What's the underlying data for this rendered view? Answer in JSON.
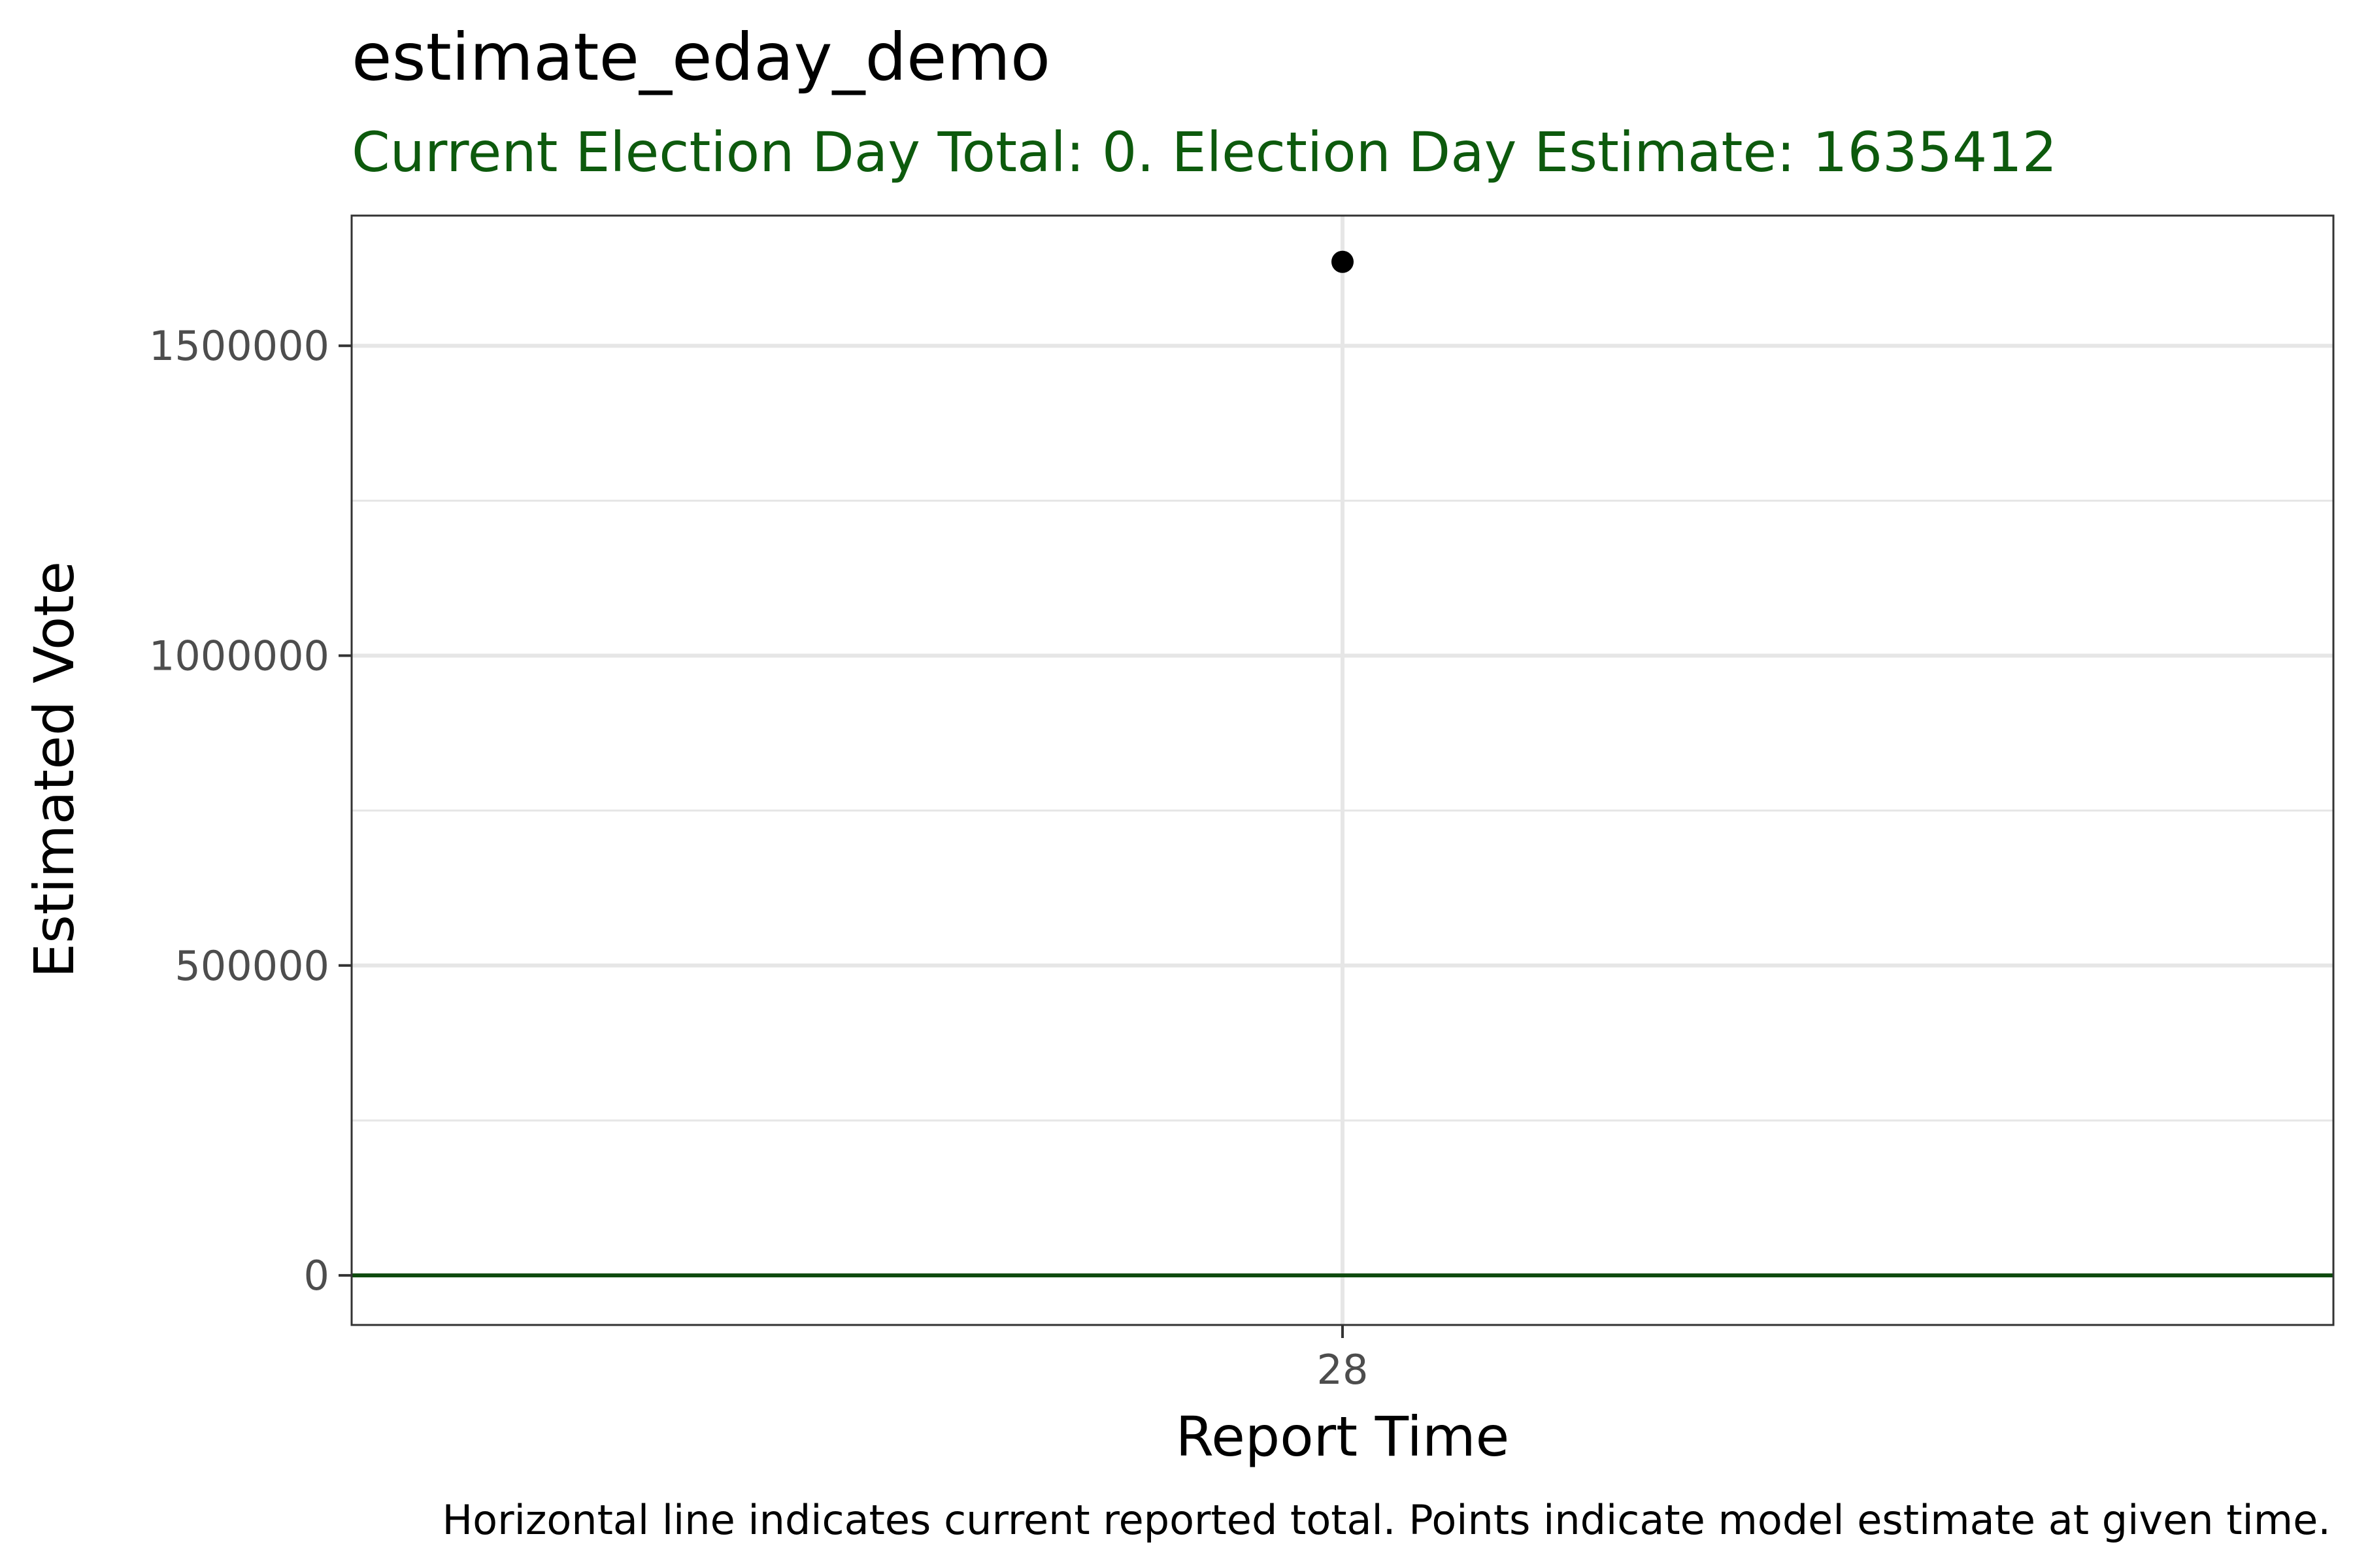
{
  "chart_data": {
    "type": "scatter",
    "title": "estimate_eday_demo",
    "subtitle": "Current Election Day Total: 0. Election Day Estimate: 1635412",
    "xlabel": "Report Time",
    "ylabel": "Estimated Vote",
    "caption": "Horizontal line indicates current reported total. Points indicate model estimate at given time.",
    "x_ticks": [
      "28"
    ],
    "y_ticks": [
      0,
      500000,
      1000000,
      1500000
    ],
    "y_tick_labels": [
      "0",
      "500000",
      "1000000",
      "1500000"
    ],
    "ylim": [
      -80000,
      1710000
    ],
    "grid": true,
    "series": [
      {
        "x": [
          "28"
        ],
        "values": [
          1635412
        ]
      }
    ],
    "reference_line": {
      "y": 0
    }
  },
  "colors": {
    "subtitle": "#0d5a0d",
    "reference_line": "#0d4a0d",
    "point": "#000000",
    "grid": "#e6e6e6",
    "panel_border": "#333333"
  }
}
